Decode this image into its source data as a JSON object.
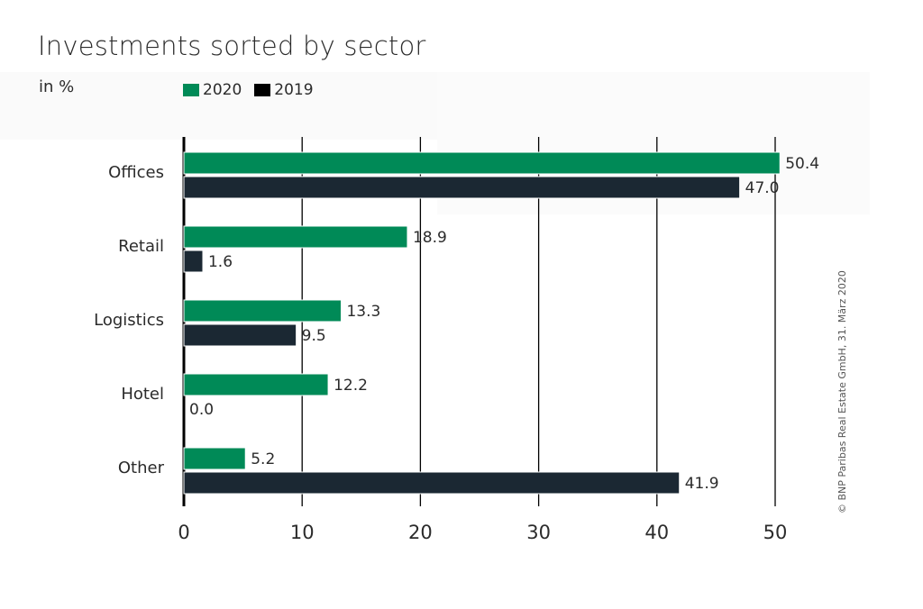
{
  "title": "Investments sorted by sector",
  "unit_label": "in %",
  "credit": "© BNP Paribas Real Estate GmbH, 31. März 2020",
  "colors": {
    "s2020": "#008a57",
    "s2019": "#1b2833",
    "grid": "#000000",
    "text": "#2b2b2b"
  },
  "legend": [
    {
      "label": "2020",
      "color": "#008a57"
    },
    {
      "label": "2019",
      "color": "#000000"
    }
  ],
  "chart_data": {
    "type": "bar",
    "orientation": "horizontal",
    "title": "Investments sorted by sector",
    "xlabel": "",
    "ylabel": "in %",
    "categories": [
      "Offices",
      "Retail",
      "Logistics",
      "Hotel",
      "Other"
    ],
    "series": [
      {
        "name": "2020",
        "values": [
          50.4,
          18.9,
          13.3,
          12.2,
          5.2
        ]
      },
      {
        "name": "2019",
        "values": [
          47.0,
          1.6,
          9.5,
          0.0,
          41.9
        ]
      }
    ],
    "value_labels": {
      "2020": [
        "50.4",
        "18.9",
        "13.3",
        "12.2",
        "5.2"
      ],
      "2019": [
        "47.0",
        "1.6",
        "9.5",
        "0.0",
        "41.9"
      ]
    },
    "xlim": [
      0,
      50
    ],
    "xticks": [
      "0",
      "10",
      "20",
      "30",
      "40",
      "50"
    ],
    "grid": true,
    "legend_position": "top-left"
  }
}
